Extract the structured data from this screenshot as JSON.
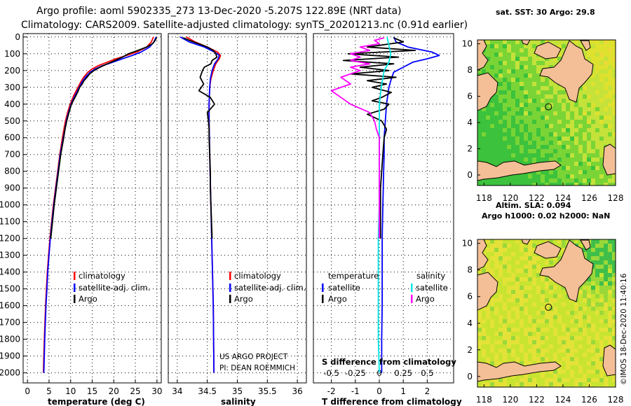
{
  "header": {
    "title_line1": "Argo profile: aoml 5902335_273 13-Dec-2020 -5.207S 122.89E (NRT data)",
    "title_line2": "Climatology: CARS2009. Satellite-adjusted climatology: synTS_20201213.nc (0.91d earlier)"
  },
  "credits": {
    "project": "US ARGO PROJECT",
    "pi": "PI: DEAN ROEMMICH",
    "imos_stamp": "©IMOS 18-Dec-2020 11:40:16"
  },
  "colors": {
    "argo": "#000000",
    "climatology": "#ff0000",
    "satellite": "#0000ff",
    "salinity_satellite": "#00e5e5",
    "salinity_argo": "#ff00ff",
    "land": "#f4bf96"
  },
  "chart_data": [
    {
      "type": "line",
      "id": "temperature",
      "xlabel": "temperature (deg C)",
      "xlim": [
        -1,
        31
      ],
      "ylim": [
        2060,
        -20
      ],
      "xticks": [
        0,
        5,
        10,
        15,
        20,
        25,
        30
      ],
      "yticks": [
        0,
        100,
        200,
        300,
        400,
        500,
        600,
        700,
        800,
        900,
        1000,
        1100,
        1200,
        1300,
        1400,
        1500,
        1600,
        1700,
        1800,
        1900,
        2000
      ],
      "legend": [
        {
          "label": "climatology",
          "color": "#ff0000"
        },
        {
          "label": "satellite-adj. clim.",
          "color": "#0000ff"
        },
        {
          "label": "Argo",
          "color": "#000000"
        }
      ],
      "series": [
        {
          "name": "climatology",
          "color": "#ff0000",
          "depth": [
            0,
            30,
            60,
            90,
            110,
            130,
            150,
            170,
            190,
            210,
            240,
            270,
            300,
            350,
            400,
            450,
            500,
            600,
            700,
            800,
            900,
            1000,
            1100,
            1200,
            1300,
            1400,
            1500,
            1600,
            1700,
            1800,
            1900,
            2000
          ],
          "values": [
            29.2,
            28.7,
            27.6,
            25.3,
            23.0,
            20.5,
            18.5,
            16.5,
            15.0,
            14.0,
            13.0,
            12.3,
            11.7,
            10.7,
            9.9,
            9.3,
            8.8,
            8.1,
            7.5,
            7.0,
            6.5,
            6.0,
            5.6,
            5.2,
            4.9,
            4.6,
            4.4,
            4.2,
            4.05,
            3.9,
            3.8,
            3.7
          ]
        },
        {
          "name": "satellite-adj. clim.",
          "color": "#0000ff",
          "depth": [
            0,
            30,
            60,
            90,
            110,
            130,
            150,
            170,
            190,
            210,
            240,
            270,
            300,
            350,
            400,
            450,
            500,
            600,
            700,
            800,
            900,
            1000,
            1100,
            1200,
            1300,
            1400,
            1500,
            1600,
            1700,
            1800,
            1900,
            2000
          ],
          "values": [
            29.8,
            29.3,
            28.3,
            26.3,
            24.3,
            22.0,
            19.8,
            17.5,
            15.7,
            14.5,
            13.4,
            12.6,
            12.0,
            11.0,
            10.1,
            9.5,
            9.0,
            8.3,
            7.6,
            7.1,
            6.6,
            6.1,
            5.7,
            5.3,
            5.0,
            4.7,
            4.5,
            4.3,
            4.15,
            4.0,
            3.9,
            3.8
          ]
        },
        {
          "name": "Argo",
          "color": "#000000",
          "depth": [
            5,
            20,
            40,
            60,
            80,
            100,
            120,
            140,
            160,
            180,
            200,
            220,
            240,
            260,
            280,
            300,
            330,
            360,
            400,
            450,
            500,
            550,
            600,
            700,
            800,
            900,
            1000,
            1100,
            1200
          ],
          "values": [
            29.9,
            29.6,
            29.0,
            27.6,
            25.6,
            23.4,
            22.0,
            20.3,
            18.5,
            16.8,
            15.4,
            14.4,
            13.8,
            13.1,
            12.7,
            12.1,
            11.6,
            11.0,
            10.2,
            9.6,
            9.1,
            8.7,
            8.4,
            7.7,
            7.2,
            6.7,
            6.2,
            5.8,
            5.4
          ]
        }
      ]
    },
    {
      "type": "line",
      "id": "salinity",
      "xlabel": "salinity",
      "xlim": [
        33.85,
        36.15
      ],
      "ylim": [
        2060,
        -20
      ],
      "xticks": [
        34,
        34.5,
        35,
        35.5,
        36
      ],
      "legend": [
        {
          "label": "climatology",
          "color": "#ff0000"
        },
        {
          "label": "satellite-adj. clim.",
          "color": "#0000ff"
        },
        {
          "label": "Argo",
          "color": "#000000"
        }
      ],
      "series": [
        {
          "name": "climatology",
          "color": "#ff0000",
          "depth": [
            0,
            30,
            60,
            90,
            110,
            130,
            160,
            200,
            250,
            300,
            400,
            500,
            700,
            1000,
            1300,
            1600,
            2000
          ],
          "values": [
            34.15,
            34.3,
            34.5,
            34.67,
            34.72,
            34.7,
            34.64,
            34.6,
            34.56,
            34.54,
            34.53,
            34.53,
            34.54,
            34.56,
            34.58,
            34.6,
            34.61
          ]
        },
        {
          "name": "satellite-adj. clim.",
          "color": "#0000ff",
          "depth": [
            0,
            30,
            60,
            90,
            110,
            130,
            160,
            200,
            250,
            300,
            400,
            500,
            700,
            1000,
            1300,
            1600,
            2000
          ],
          "values": [
            34.05,
            34.2,
            34.45,
            34.62,
            34.7,
            34.68,
            34.62,
            34.58,
            34.55,
            34.54,
            34.53,
            34.53,
            34.54,
            34.56,
            34.58,
            34.6,
            34.61
          ]
        },
        {
          "name": "Argo",
          "color": "#000000",
          "depth": [
            5,
            20,
            40,
            60,
            80,
            100,
            120,
            140,
            160,
            180,
            200,
            240,
            280,
            320,
            360,
            400,
            450,
            500,
            550,
            600,
            700,
            800,
            900,
            1000,
            1100,
            1200
          ],
          "values": [
            34.1,
            34.2,
            34.35,
            34.5,
            34.6,
            34.64,
            34.66,
            34.58,
            34.56,
            34.45,
            34.42,
            34.38,
            34.44,
            34.36,
            34.55,
            34.62,
            34.5,
            34.52,
            34.53,
            34.53,
            34.54,
            34.55,
            34.55,
            34.56,
            34.57,
            34.58
          ]
        }
      ]
    },
    {
      "type": "line",
      "id": "difference",
      "xlabel": "T difference from climatology",
      "secondary_axis_label": "S difference from climatology",
      "xlim": [
        -2.75,
        3.1
      ],
      "ylim": [
        2060,
        -20
      ],
      "xticks": [
        -2,
        -1,
        0,
        1,
        2
      ],
      "secondary_xticks": [
        -0.5,
        -0.25,
        0,
        0.25,
        0.5
      ],
      "secondary_scale": 4,
      "legend_titles": [
        "temperature",
        "salinity"
      ],
      "legend": [
        {
          "label": "satellite",
          "color": "#0000ff",
          "group": "temperature"
        },
        {
          "label": "Argo",
          "color": "#000000",
          "group": "temperature"
        },
        {
          "label": "satellite",
          "color": "#00e5e5",
          "group": "salinity"
        },
        {
          "label": "Argo",
          "color": "#ff00ff",
          "group": "salinity"
        }
      ],
      "series": [
        {
          "name": "temperature satellite",
          "color": "#0000ff",
          "depth": [
            0,
            30,
            60,
            90,
            110,
            130,
            150,
            180,
            210,
            250,
            300,
            350,
            400,
            500,
            600,
            700,
            800,
            1000,
            1200,
            1400,
            1600,
            1800,
            2000
          ],
          "values": [
            0.6,
            0.7,
            1.2,
            2.2,
            2.5,
            2.0,
            1.4,
            1.0,
            0.6,
            0.5,
            0.4,
            0.35,
            0.3,
            0.25,
            0.2,
            0.2,
            0.18,
            0.15,
            0.12,
            0.12,
            0.12,
            0.1,
            0.1
          ]
        },
        {
          "name": "temperature Argo",
          "color": "#000000",
          "depth": [
            5,
            30,
            60,
            80,
            100,
            120,
            140,
            160,
            180,
            200,
            220,
            240,
            260,
            280,
            300,
            330,
            360,
            380,
            400,
            430,
            460,
            500,
            550,
            600,
            700,
            800,
            900,
            1000,
            1100,
            1200
          ],
          "values": [
            0.6,
            1.0,
            -0.5,
            1.5,
            -1.3,
            0.8,
            -1.5,
            0.6,
            -0.8,
            0.4,
            -1.2,
            0.7,
            -0.5,
            0.3,
            -0.3,
            0.5,
            0.1,
            -0.3,
            0.4,
            0.2,
            -0.5,
            0.1,
            0.3,
            0.2,
            0.15,
            0.1,
            0.05,
            0.05,
            0.05,
            0.05
          ]
        },
        {
          "name": "salinity satellite",
          "color": "#00e5e5",
          "depth": [
            0,
            50,
            100,
            150,
            200,
            300,
            400,
            600,
            800,
            1000,
            1200,
            1500,
            1800,
            2000
          ],
          "values": [
            0.08,
            0.1,
            0.12,
            0.1,
            0.05,
            0.02,
            0.0,
            0.0,
            0.0,
            0.0,
            -0.01,
            -0.01,
            -0.01,
            0.0
          ]
        },
        {
          "name": "salinity Argo",
          "color": "#ff00ff",
          "depth": [
            5,
            20,
            40,
            60,
            80,
            100,
            120,
            140,
            160,
            180,
            200,
            240,
            280,
            320,
            360,
            400,
            450,
            500,
            550,
            600,
            700,
            800,
            900,
            1000,
            1100,
            1200
          ],
          "values": [
            0.05,
            -0.05,
            0.0,
            -0.2,
            -0.1,
            -0.3,
            -0.2,
            -0.3,
            -0.1,
            -0.3,
            -0.2,
            -0.4,
            -0.3,
            -0.5,
            -0.4,
            -0.3,
            -0.1,
            -0.05,
            -0.03,
            0.0,
            0.0,
            0.0,
            0.0,
            0.0,
            0.0,
            0.0
          ]
        }
      ]
    },
    {
      "type": "heatmap",
      "id": "sst_map",
      "title": "sat. SST: 30 Argo: 29.8",
      "xlim": [
        117.5,
        128
      ],
      "ylim": [
        -0.8,
        10.3
      ],
      "xticks": [
        118,
        120,
        122,
        124,
        126,
        128
      ],
      "yticks": [
        0,
        2,
        4,
        6,
        8,
        10
      ],
      "argo_position": {
        "lon": 122.9,
        "lat": 5.2
      }
    },
    {
      "type": "heatmap",
      "id": "sla_map",
      "title_line1": "Altim. SLA: 0.094",
      "title_line2": "Argo h1000: 0.02 h2000: NaN",
      "xlim": [
        117.5,
        128
      ],
      "ylim": [
        -0.8,
        10.3
      ],
      "xticks": [
        118,
        120,
        122,
        124,
        126,
        128
      ],
      "yticks": [
        0,
        2,
        4,
        6,
        8,
        10
      ],
      "argo_position": {
        "lon": 122.9,
        "lat": 5.2
      }
    }
  ]
}
